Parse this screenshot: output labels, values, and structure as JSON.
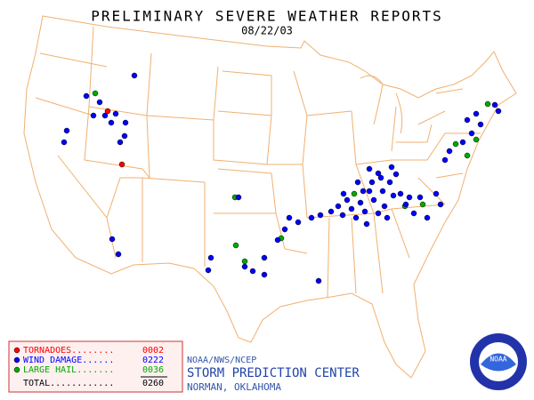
{
  "header": {
    "title": "PRELIMINARY SEVERE WEATHER REPORTS",
    "date": "08/22/03"
  },
  "legend": {
    "items": [
      {
        "label": "TORNADOES........",
        "count": "0002",
        "color": "#ff0000"
      },
      {
        "label": "WIND DAMAGE......",
        "count": "0222",
        "color": "#0000ff"
      },
      {
        "label": "LARGE HAIL.......",
        "count": "0036",
        "color": "#00aa00"
      }
    ],
    "total": {
      "label": "TOTAL............",
      "count": "0260"
    }
  },
  "footer": {
    "agency": "NOAA/NWS/NCEP",
    "center": "STORM PREDICTION CENTER",
    "location": "NORMAN, OKLAHOMA"
  },
  "logo": {
    "text": "NOAA"
  }
}
